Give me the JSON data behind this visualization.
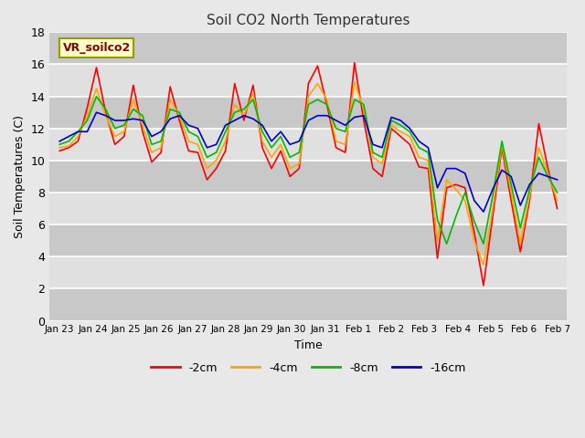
{
  "title": "Soil CO2 North Temperatures",
  "xlabel": "Time",
  "ylabel": "Soil Temperatures (C)",
  "ylim": [
    0,
    18
  ],
  "line_colors": [
    "#ff0000",
    "#ffa500",
    "#00bb00",
    "#0000cc"
  ],
  "line_labels": [
    "-2cm",
    "-4cm",
    "-8cm",
    "-16cm"
  ],
  "fig_bg_color": "#e8e8e8",
  "plot_bg_color": "#cccccc",
  "x_labels": [
    "Jan 23",
    "Jan 24",
    "Jan 25",
    "Jan 26",
    "Jan 27",
    "Jan 28",
    "Jan 29",
    "Jan 30",
    "Jan 31",
    "Feb 1",
    "Feb 2",
    "Feb 3",
    "Feb 4",
    "Feb 5",
    "Feb 6",
    "Feb 7"
  ],
  "yticks": [
    0,
    2,
    4,
    6,
    8,
    10,
    12,
    14,
    16,
    18
  ],
  "data_2cm": [
    10.6,
    10.8,
    11.2,
    13.3,
    15.8,
    13.0,
    11.0,
    11.5,
    14.7,
    11.8,
    9.9,
    10.5,
    14.6,
    12.5,
    10.6,
    10.5,
    8.8,
    9.5,
    10.6,
    14.8,
    12.5,
    14.7,
    10.8,
    9.5,
    10.6,
    9.0,
    9.5,
    14.8,
    15.9,
    13.5,
    10.8,
    10.5,
    16.1,
    12.5,
    9.5,
    9.0,
    12.0,
    11.5,
    11.0,
    9.6,
    9.5,
    3.9,
    8.3,
    8.5,
    8.3,
    5.5,
    2.2,
    6.5,
    10.8,
    7.5,
    4.3,
    7.5,
    12.3,
    9.5,
    7.0
  ],
  "data_4cm": [
    10.8,
    10.9,
    11.5,
    12.8,
    14.5,
    12.8,
    11.5,
    11.8,
    13.8,
    12.2,
    10.5,
    10.8,
    13.8,
    12.8,
    11.2,
    11.0,
    9.5,
    10.0,
    11.2,
    13.5,
    12.8,
    14.2,
    11.2,
    10.2,
    11.0,
    9.5,
    9.8,
    14.0,
    14.8,
    13.8,
    11.2,
    11.0,
    14.9,
    13.2,
    10.2,
    9.8,
    12.2,
    11.8,
    11.5,
    10.2,
    10.0,
    5.0,
    8.8,
    8.2,
    7.5,
    5.0,
    3.5,
    7.0,
    11.0,
    8.0,
    4.8,
    7.8,
    10.8,
    9.2,
    7.5
  ],
  "data_8cm": [
    11.0,
    11.2,
    11.8,
    12.5,
    14.0,
    13.2,
    12.0,
    12.2,
    13.2,
    12.8,
    11.0,
    11.2,
    13.2,
    13.0,
    11.8,
    11.5,
    10.2,
    10.5,
    11.8,
    13.0,
    13.2,
    13.8,
    11.8,
    10.8,
    11.5,
    10.2,
    10.5,
    13.5,
    13.8,
    13.5,
    12.0,
    11.8,
    13.8,
    13.5,
    10.5,
    10.2,
    12.5,
    12.2,
    11.8,
    10.8,
    10.5,
    6.3,
    4.8,
    6.5,
    8.0,
    6.2,
    4.8,
    7.8,
    11.2,
    8.5,
    5.8,
    8.2,
    10.2,
    9.0,
    8.0
  ],
  "data_16cm": [
    11.2,
    11.5,
    11.8,
    11.8,
    13.0,
    12.8,
    12.5,
    12.5,
    12.6,
    12.5,
    11.5,
    11.8,
    12.6,
    12.8,
    12.2,
    12.0,
    10.8,
    11.0,
    12.2,
    12.5,
    12.8,
    12.6,
    12.2,
    11.2,
    11.8,
    11.0,
    11.2,
    12.5,
    12.8,
    12.8,
    12.5,
    12.2,
    12.7,
    12.8,
    11.0,
    10.8,
    12.7,
    12.5,
    12.0,
    11.2,
    10.8,
    8.3,
    9.5,
    9.5,
    9.2,
    7.5,
    6.8,
    8.2,
    9.4,
    9.0,
    7.2,
    8.5,
    9.2,
    9.0,
    8.8
  ]
}
